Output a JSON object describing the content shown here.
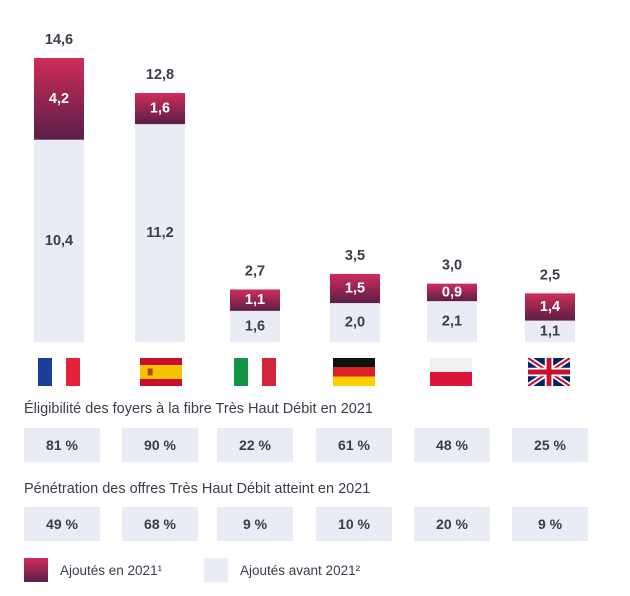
{
  "chart_data": {
    "type": "bar",
    "stacked": true,
    "categories": [
      "France",
      "Espagne",
      "Italie",
      "Allemagne",
      "Pologne",
      "Royaume-Uni"
    ],
    "series": [
      {
        "name": "Ajoutés avant 2021²",
        "values": [
          10.4,
          11.2,
          1.6,
          2.0,
          2.1,
          1.1
        ],
        "labels": [
          "10,4",
          "11,2",
          "1,6",
          "2,0",
          "2,1",
          "1,1"
        ],
        "color": "#e9ebf5"
      },
      {
        "name": "Ajoutés en 2021¹",
        "values": [
          4.2,
          1.6,
          1.1,
          1.5,
          0.9,
          1.4
        ],
        "labels": [
          "4,2",
          "1,6",
          "1,1",
          "1,5",
          "0,9",
          "1,4"
        ],
        "color": "#b52a58"
      }
    ],
    "totals": [
      14.6,
      12.8,
      2.7,
      3.5,
      3.0,
      2.5
    ],
    "total_labels": [
      "14,6",
      "12,8",
      "2,7",
      "3,5",
      "3,0",
      "2,5"
    ],
    "ylim": [
      0,
      14.6
    ],
    "grid": false,
    "legend_position": "bottom-left"
  },
  "flags": [
    {
      "country": "France",
      "icon": "france-flag-icon"
    },
    {
      "country": "Espagne",
      "icon": "spain-flag-icon"
    },
    {
      "country": "Italie",
      "icon": "italy-flag-icon"
    },
    {
      "country": "Allemagne",
      "icon": "germany-flag-icon"
    },
    {
      "country": "Pologne",
      "icon": "poland-flag-icon"
    },
    {
      "country": "Royaume-Uni",
      "icon": "uk-flag-icon"
    }
  ],
  "eligibility": {
    "title": "Éligibilité des foyers à la fibre Très Haut Débit en 2021",
    "values": [
      "81 %",
      "90 %",
      "22 %",
      "61 %",
      "48 %",
      "25 %"
    ]
  },
  "penetration": {
    "title": "Pénétration des offres Très Haut Débit atteint en 2021",
    "values": [
      "49 %",
      "68 %",
      "9 %",
      "10 %",
      "20 %",
      "9 %"
    ]
  },
  "legend": {
    "new_label": "Ajoutés en 2021¹",
    "old_label": "Ajoutés avant 2021²"
  },
  "colors": {
    "new_top": "#d02c5a",
    "new_bottom": "#5a1f48",
    "old": "#e9ebf5",
    "text": "#3c3c4a"
  }
}
